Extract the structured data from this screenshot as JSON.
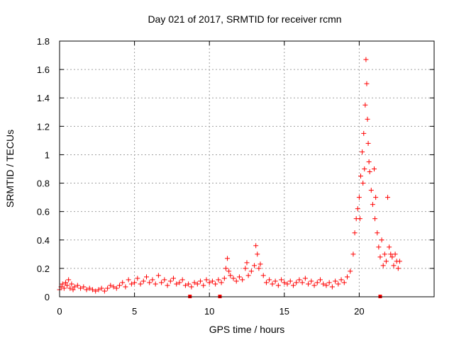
{
  "chart_data": {
    "type": "scatter",
    "title": "Day 021 of 2017, SRMTID for receiver rcmn",
    "xlabel": "GPS time / hours",
    "ylabel": "SRMTID / TECUs",
    "xlim": [
      0,
      25
    ],
    "ylim": [
      0,
      1.8
    ],
    "grid": true,
    "x_ticks": [
      0,
      5,
      10,
      15,
      20
    ],
    "x_tick_labels": [
      "0",
      "5",
      "10",
      "15",
      "20"
    ],
    "y_ticks": [
      0,
      0.2,
      0.4,
      0.6,
      0.8,
      1.0,
      1.2,
      1.4,
      1.6,
      1.8
    ],
    "y_tick_labels": [
      "0",
      "0.2",
      "0.4",
      "0.6",
      "0.8",
      "1",
      "1.2",
      "1.4",
      "1.6",
      "1.8"
    ],
    "marker": "+",
    "marker_color": "#ff0000",
    "x_axis_markers": [
      8.7,
      10.7,
      21.4
    ],
    "series": [
      {
        "points": [
          [
            0.0,
            0.05
          ],
          [
            0.1,
            0.07
          ],
          [
            0.2,
            0.09
          ],
          [
            0.3,
            0.06
          ],
          [
            0.4,
            0.1
          ],
          [
            0.5,
            0.08
          ],
          [
            0.6,
            0.12
          ],
          [
            0.7,
            0.06
          ],
          [
            0.8,
            0.09
          ],
          [
            0.9,
            0.05
          ],
          [
            1.0,
            0.07
          ],
          [
            1.2,
            0.08
          ],
          [
            1.4,
            0.06
          ],
          [
            1.6,
            0.07
          ],
          [
            1.8,
            0.05
          ],
          [
            2.0,
            0.06
          ],
          [
            2.2,
            0.05
          ],
          [
            2.4,
            0.04
          ],
          [
            2.6,
            0.05
          ],
          [
            2.8,
            0.06
          ],
          [
            3.0,
            0.04
          ],
          [
            3.2,
            0.06
          ],
          [
            3.4,
            0.08
          ],
          [
            3.6,
            0.07
          ],
          [
            3.8,
            0.06
          ],
          [
            4.0,
            0.08
          ],
          [
            4.2,
            0.1
          ],
          [
            4.4,
            0.07
          ],
          [
            4.6,
            0.12
          ],
          [
            4.8,
            0.09
          ],
          [
            5.0,
            0.1
          ],
          [
            5.2,
            0.13
          ],
          [
            5.4,
            0.09
          ],
          [
            5.6,
            0.11
          ],
          [
            5.8,
            0.14
          ],
          [
            6.0,
            0.1
          ],
          [
            6.2,
            0.12
          ],
          [
            6.4,
            0.09
          ],
          [
            6.6,
            0.15
          ],
          [
            6.8,
            0.1
          ],
          [
            7.0,
            0.12
          ],
          [
            7.2,
            0.08
          ],
          [
            7.4,
            0.11
          ],
          [
            7.6,
            0.13
          ],
          [
            7.8,
            0.09
          ],
          [
            8.0,
            0.1
          ],
          [
            8.2,
            0.12
          ],
          [
            8.4,
            0.08
          ],
          [
            8.6,
            0.09
          ],
          [
            8.8,
            0.07
          ],
          [
            9.0,
            0.1
          ],
          [
            9.2,
            0.09
          ],
          [
            9.4,
            0.11
          ],
          [
            9.6,
            0.08
          ],
          [
            9.8,
            0.12
          ],
          [
            10.0,
            0.1
          ],
          [
            10.2,
            0.11
          ],
          [
            10.4,
            0.09
          ],
          [
            10.6,
            0.12
          ],
          [
            10.8,
            0.1
          ],
          [
            11.0,
            0.13
          ],
          [
            11.1,
            0.2
          ],
          [
            11.2,
            0.27
          ],
          [
            11.3,
            0.18
          ],
          [
            11.4,
            0.15
          ],
          [
            11.6,
            0.13
          ],
          [
            11.8,
            0.11
          ],
          [
            12.0,
            0.14
          ],
          [
            12.2,
            0.12
          ],
          [
            12.4,
            0.2
          ],
          [
            12.5,
            0.24
          ],
          [
            12.6,
            0.15
          ],
          [
            12.8,
            0.18
          ],
          [
            13.0,
            0.22
          ],
          [
            13.1,
            0.36
          ],
          [
            13.2,
            0.3
          ],
          [
            13.3,
            0.2
          ],
          [
            13.4,
            0.23
          ],
          [
            13.6,
            0.15
          ],
          [
            13.8,
            0.1
          ],
          [
            14.0,
            0.12
          ],
          [
            14.2,
            0.09
          ],
          [
            14.4,
            0.11
          ],
          [
            14.6,
            0.08
          ],
          [
            14.8,
            0.12
          ],
          [
            15.0,
            0.1
          ],
          [
            15.2,
            0.09
          ],
          [
            15.4,
            0.11
          ],
          [
            15.6,
            0.08
          ],
          [
            15.8,
            0.1
          ],
          [
            16.0,
            0.12
          ],
          [
            16.2,
            0.1
          ],
          [
            16.4,
            0.13
          ],
          [
            16.6,
            0.09
          ],
          [
            16.8,
            0.11
          ],
          [
            17.0,
            0.08
          ],
          [
            17.2,
            0.1
          ],
          [
            17.4,
            0.12
          ],
          [
            17.6,
            0.09
          ],
          [
            17.8,
            0.08
          ],
          [
            18.0,
            0.1
          ],
          [
            18.2,
            0.07
          ],
          [
            18.4,
            0.11
          ],
          [
            18.6,
            0.09
          ],
          [
            18.8,
            0.12
          ],
          [
            19.0,
            0.1
          ],
          [
            19.2,
            0.14
          ],
          [
            19.4,
            0.18
          ],
          [
            19.6,
            0.3
          ],
          [
            19.7,
            0.45
          ],
          [
            19.8,
            0.55
          ],
          [
            19.9,
            0.62
          ],
          [
            20.0,
            0.7
          ],
          [
            20.05,
            0.55
          ],
          [
            20.1,
            0.85
          ],
          [
            20.2,
            1.02
          ],
          [
            20.25,
            0.8
          ],
          [
            20.3,
            1.15
          ],
          [
            20.35,
            0.9
          ],
          [
            20.4,
            1.35
          ],
          [
            20.45,
            1.67
          ],
          [
            20.5,
            1.5
          ],
          [
            20.55,
            1.25
          ],
          [
            20.6,
            1.08
          ],
          [
            20.65,
            0.95
          ],
          [
            20.7,
            0.88
          ],
          [
            20.8,
            0.75
          ],
          [
            20.9,
            0.65
          ],
          [
            21.0,
            0.9
          ],
          [
            21.05,
            0.55
          ],
          [
            21.1,
            0.7
          ],
          [
            21.2,
            0.45
          ],
          [
            21.3,
            0.35
          ],
          [
            21.4,
            0.28
          ],
          [
            21.5,
            0.4
          ],
          [
            21.6,
            0.22
          ],
          [
            21.7,
            0.3
          ],
          [
            21.8,
            0.25
          ],
          [
            21.9,
            0.7
          ],
          [
            22.0,
            0.35
          ],
          [
            22.1,
            0.3
          ],
          [
            22.2,
            0.28
          ],
          [
            22.3,
            0.22
          ],
          [
            22.4,
            0.3
          ],
          [
            22.5,
            0.25
          ],
          [
            22.6,
            0.2
          ],
          [
            22.7,
            0.25
          ]
        ]
      }
    ]
  }
}
